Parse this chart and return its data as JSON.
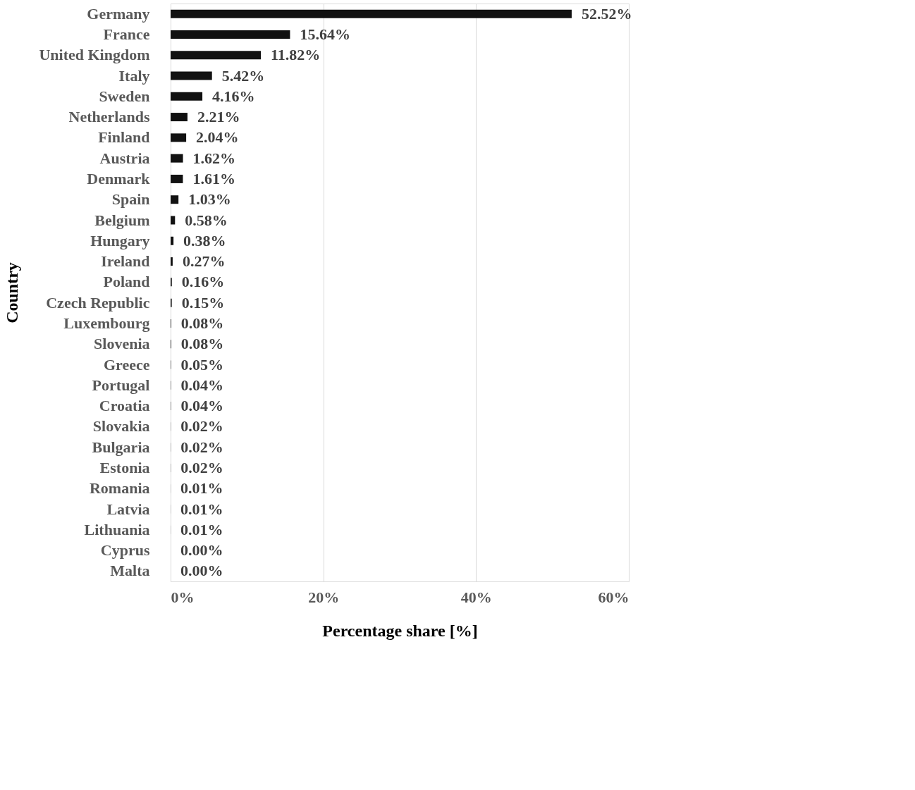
{
  "chart_data": {
    "type": "bar",
    "orientation": "horizontal",
    "xlabel": "Percentage share [%]",
    "ylabel": "Country",
    "categories": [
      "Germany",
      "France",
      "United Kingdom",
      "Italy",
      "Sweden",
      "Netherlands",
      "Finland",
      "Austria",
      "Denmark",
      "Spain",
      "Belgium",
      "Hungary",
      "Ireland",
      "Poland",
      "Czech Republic",
      "Luxembourg",
      "Slovenia",
      "Greece",
      "Portugal",
      "Croatia",
      "Slovakia",
      "Bulgaria",
      "Estonia",
      "Romania",
      "Latvia",
      "Lithuania",
      "Cyprus",
      "Malta"
    ],
    "values": [
      52.52,
      15.64,
      11.82,
      5.42,
      4.16,
      2.21,
      2.04,
      1.62,
      1.61,
      1.03,
      0.58,
      0.38,
      0.27,
      0.16,
      0.15,
      0.08,
      0.08,
      0.05,
      0.04,
      0.04,
      0.02,
      0.02,
      0.02,
      0.01,
      0.01,
      0.01,
      0.0,
      0.0
    ],
    "value_labels": [
      "52.52%",
      "15.64%",
      "11.82%",
      "5.42%",
      "4.16%",
      "2.21%",
      "2.04%",
      "1.62%",
      "1.61%",
      "1.03%",
      "0.58%",
      "0.38%",
      "0.27%",
      "0.16%",
      "0.15%",
      "0.08%",
      "0.08%",
      "0.05%",
      "0.04%",
      "0.04%",
      "0.02%",
      "0.02%",
      "0.02%",
      "0.01%",
      "0.01%",
      "0.01%",
      "0.00%",
      "0.00%"
    ],
    "color": "#111111",
    "xlim": [
      0,
      60
    ],
    "xticks": [
      {
        "value": 0,
        "label": "0%"
      },
      {
        "value": 20,
        "label": "20%"
      },
      {
        "value": 40,
        "label": "40%"
      },
      {
        "value": 60,
        "label": "60%"
      }
    ],
    "grid": "x"
  }
}
